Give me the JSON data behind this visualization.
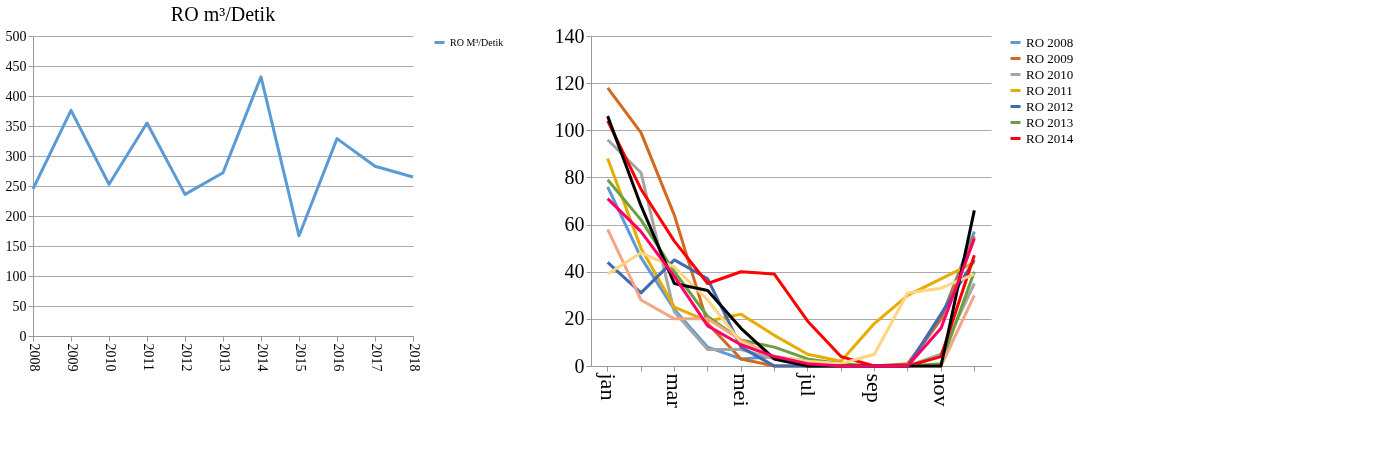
{
  "chart_data": [
    {
      "type": "line",
      "title": "RO m³/Detik",
      "categories": [
        "2008",
        "2009",
        "2010",
        "2011",
        "2012",
        "2013",
        "2014",
        "2015",
        "2016",
        "2017",
        "2018"
      ],
      "series": [
        {
          "name": "RO M³/Detik",
          "color": "#5b9bd5",
          "values": [
            245,
            376,
            253,
            355,
            236,
            272,
            432,
            167,
            329,
            283,
            265
          ]
        }
      ],
      "ylim": [
        0,
        500
      ],
      "yticks": [
        0,
        50,
        100,
        150,
        200,
        250,
        300,
        350,
        400,
        450,
        500
      ],
      "grid": "y",
      "legend": "right",
      "marker": "none",
      "line_style": "solid"
    },
    {
      "type": "line",
      "categories": [
        "jan",
        null,
        "mar",
        null,
        "mei",
        null,
        "jul",
        null,
        "sep",
        null,
        "nov",
        null
      ],
      "series": [
        {
          "name": "RO 2008",
          "color": "#5b9bd5",
          "values": [
            76,
            46,
            24,
            8,
            3,
            4,
            2,
            0,
            0,
            0,
            20,
            57
          ]
        },
        {
          "name": "RO 2009",
          "color": "#d2691e",
          "values": [
            118,
            99,
            64,
            18,
            3,
            0,
            0,
            0,
            0,
            1,
            20,
            55
          ]
        },
        {
          "name": "RO 2010",
          "color": "#a5a5a5",
          "values": [
            96,
            82,
            23,
            7,
            7,
            3,
            0,
            0,
            0,
            0,
            5,
            35
          ]
        },
        {
          "name": "RO 2011",
          "color": "#e6ac00",
          "values": [
            88,
            50,
            25,
            19,
            22,
            13,
            5,
            2,
            18,
            30,
            37,
            44
          ]
        },
        {
          "name": "RO 2012",
          "color": "#4169b4",
          "values": [
            44,
            31,
            45,
            37,
            8,
            0,
            0,
            0,
            0,
            0,
            22,
            45
          ]
        },
        {
          "name": "RO 2013",
          "color": "#6aa043",
          "values": [
            79,
            62,
            40,
            21,
            11,
            8,
            3,
            1,
            0,
            0,
            1,
            40
          ]
        },
        {
          "name": "RO 2014",
          "color": "#ff0000",
          "values": [
            104,
            75,
            53,
            35,
            40,
            39,
            19,
            4,
            0,
            0,
            4,
            47
          ]
        },
        {
          "color": "#f4a582",
          "values": [
            58,
            28,
            20,
            20,
            11,
            4,
            1,
            0,
            0,
            0,
            0,
            30
          ]
        },
        {
          "color": "#ffd580",
          "values": [
            39,
            48,
            42,
            28,
            10,
            4,
            2,
            1,
            5,
            31,
            33,
            39
          ]
        },
        {
          "color": "#000000",
          "values": [
            106,
            68,
            35,
            32,
            16,
            3,
            0,
            0,
            0,
            0,
            0,
            66
          ]
        },
        {
          "color": "#ff0066",
          "values": [
            71,
            57,
            38,
            17,
            9,
            4,
            1,
            0,
            0,
            0,
            16,
            54
          ]
        }
      ],
      "ylim": [
        0,
        140
      ],
      "yticks": [
        0,
        20,
        40,
        60,
        80,
        100,
        120,
        140
      ],
      "grid": "y",
      "legend": "right",
      "marker": "none",
      "line_style": "solid"
    }
  ]
}
